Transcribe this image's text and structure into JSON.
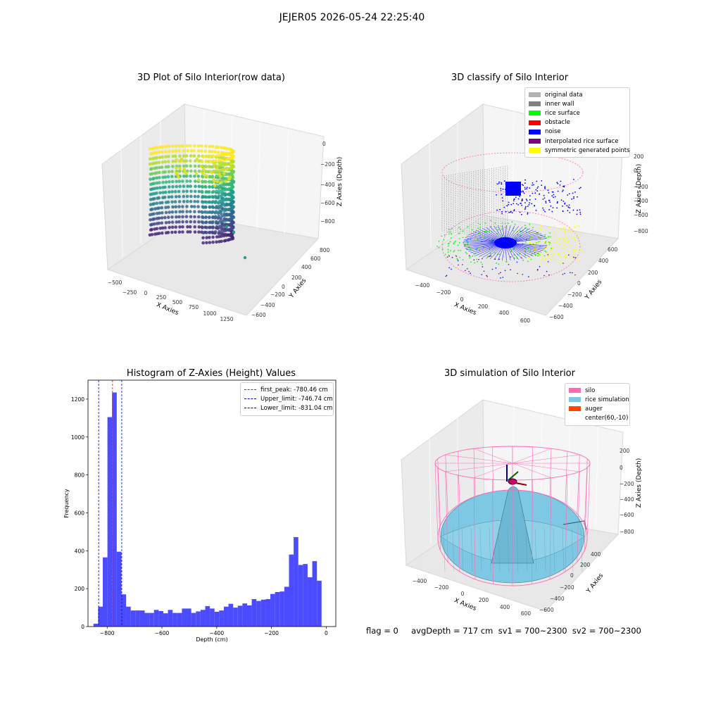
{
  "suptitle": "JEJER05 2026-05-24 22:25:40",
  "footer": "flag = 0     avgDepth = 717 cm  sv1 = 700~2300  sv2 = 700~2300",
  "colors": {
    "histogram": "#4b4bff",
    "first_peak": "#ff0000",
    "limits": "#0000aa",
    "original": "#b3b3b3",
    "inner_wall": "#808080",
    "rice_surface": "#00ff00",
    "obstacle": "#ff0000",
    "noise": "#0000ff",
    "interpolated": "#800080",
    "symmetric": "#ffff00",
    "silo": "#ff69b4",
    "rice_sim": "#7ec8e3",
    "auger": "#ff4500"
  },
  "panels": {
    "p1": {
      "title": "3D Plot of Silo Interior(row data)",
      "xlabel": "X Axies",
      "ylabel": "Y Axies",
      "zlabel": "Z Axies (Depth)",
      "xticks": [
        "−500",
        "−250",
        "0",
        "250",
        "500",
        "750",
        "1000",
        "1250"
      ],
      "yticks": [
        "−600",
        "−400",
        "−200",
        "0",
        "200",
        "400",
        "600",
        "800"
      ],
      "zticks": [
        "0",
        "−200",
        "−400",
        "−600",
        "−800"
      ]
    },
    "p2": {
      "title": "3D classify of Silo Interior",
      "xlabel": "X Axies",
      "ylabel": "Y Axies",
      "zlabel": "Z Axies (Depth)",
      "xticks": [
        "−400",
        "−200",
        "0",
        "200",
        "400",
        "600"
      ],
      "yticks": [
        "−600",
        "−400",
        "−200",
        "0",
        "200",
        "400",
        "600"
      ],
      "zticks": [
        "200",
        "0",
        "−200",
        "−400",
        "−600",
        "−800"
      ],
      "legend": [
        "original data",
        "inner wall",
        "rice surface",
        "obstacle",
        "noise",
        "interpolated rice surface",
        "symmetric generated points"
      ]
    },
    "p4": {
      "title": "3D simulation of Silo Interior",
      "xlabel": "X Axies",
      "ylabel": "Y Axies",
      "zlabel": "Z Axies (Depth)",
      "xticks": [
        "−400",
        "−200",
        "0",
        "200",
        "400",
        "600"
      ],
      "yticks": [
        "−600",
        "−400",
        "−200",
        "0",
        "200",
        "400"
      ],
      "zticks": [
        "200",
        "0",
        "−200",
        "−400",
        "−600",
        "−800"
      ],
      "legend": [
        "silo",
        "rice simulation",
        "auger",
        "center(60,-10)"
      ]
    }
  },
  "chart_data": [
    {
      "type": "bar",
      "title": "Histogram of Z-Axies (Height) Values",
      "xlabel": "Depth (cm)",
      "ylabel": "Frequency",
      "xlim": [
        -870,
        35
      ],
      "ylim": [
        0,
        1300
      ],
      "xticks": [
        -800,
        -600,
        -400,
        -200,
        0
      ],
      "xtick_labels": [
        "−800",
        "−600",
        "−400",
        "−200",
        "0"
      ],
      "yticks": [
        0,
        200,
        400,
        600,
        800,
        1000,
        1200
      ],
      "bin_start": -850,
      "bin_width": 17,
      "values": [
        15,
        105,
        365,
        1105,
        1235,
        395,
        170,
        105,
        85,
        85,
        85,
        72,
        72,
        88,
        82,
        70,
        88,
        72,
        72,
        95,
        95,
        72,
        80,
        88,
        108,
        95,
        78,
        85,
        105,
        120,
        100,
        110,
        122,
        112,
        145,
        135,
        142,
        145,
        172,
        182,
        185,
        210,
        380,
        472,
        325,
        330,
        260,
        345,
        242
      ],
      "vlines": [
        {
          "label": "first_peak: -780.46 cm",
          "x": -780.46,
          "style": "first_peak"
        },
        {
          "label": "Upper_limit: -746.74 cm",
          "x": -746.74,
          "style": "limits"
        },
        {
          "label": "Lower_limit: -831.04 cm",
          "x": -831.04,
          "style": "limits"
        }
      ]
    }
  ]
}
